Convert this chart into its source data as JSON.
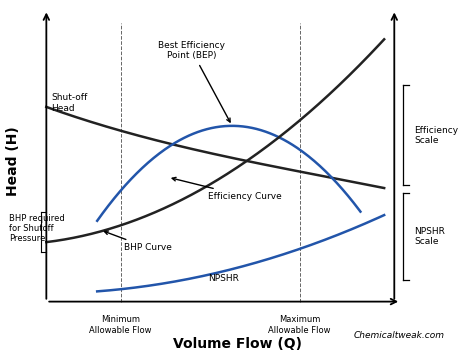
{
  "title": "",
  "xlabel": "Volume Flow (Q)",
  "ylabel": "Head (H)",
  "bg_color": "#ffffff",
  "curve_color_black": "#222222",
  "curve_color_blue": "#2255aa",
  "watermark": "Chemicaltweak.com",
  "annotations": {
    "shutoff_head": "Shut-off\nHead",
    "bhp_required": "BHP required\nfor Shutoff\nPressure",
    "best_efficiency": "Best Efficiency\nPoint (BEP)",
    "efficiency_curve_label": "Efficiency Curve",
    "bhp_curve_label": "BHP Curve",
    "npshr_label": "NPSHR",
    "min_flow_label": "Minimum\nAllowable Flow",
    "max_flow_label": "Maximum\nAllowable Flow",
    "efficiency_scale_label": "Efficiency\nScale",
    "npshr_scale_label": "NPSHR\nScale"
  }
}
